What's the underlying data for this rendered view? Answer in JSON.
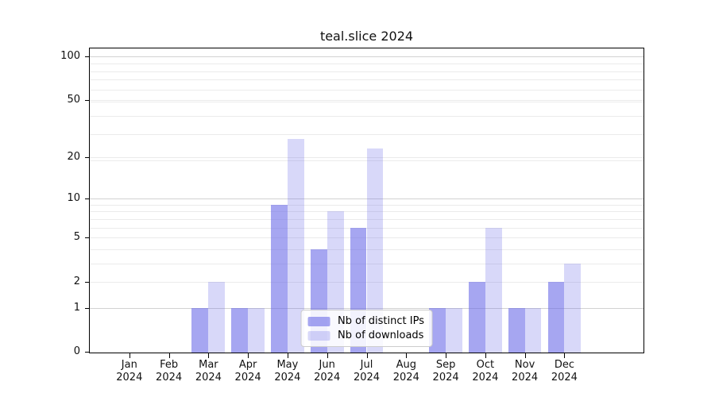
{
  "chart_data": {
    "type": "bar",
    "title": "teal.slice 2024",
    "categories": [
      "Jan",
      "Feb",
      "Mar",
      "Apr",
      "May",
      "Jun",
      "Jul",
      "Aug",
      "Sep",
      "Oct",
      "Nov",
      "Dec"
    ],
    "year_label": "2024",
    "series": [
      {
        "key": "distinct-ips",
        "name": "Nb of distinct IPs",
        "color": "rgba(101,101,231,0.58)",
        "values": [
          0,
          0,
          1,
          1,
          9,
          4,
          6,
          0,
          1,
          2,
          1,
          2
        ]
      },
      {
        "key": "downloads",
        "name": "Nb of downloads",
        "color": "rgba(101,101,231,0.25)",
        "values": [
          0,
          0,
          2,
          1,
          27,
          8,
          23,
          0,
          1,
          6,
          1,
          3
        ]
      }
    ],
    "yscale": "log10(value+1)",
    "ylim": [
      0,
      113
    ],
    "xlim_units": [
      -1,
      12
    ],
    "y_ticks": [
      0,
      1,
      2,
      5,
      10,
      20,
      50,
      100
    ],
    "gridlines_major": [
      1,
      10,
      100
    ],
    "gridlines_minor": [
      2,
      3,
      4,
      5,
      6,
      7,
      8,
      9,
      19,
      20,
      29,
      39,
      49,
      50,
      59,
      69,
      79,
      89
    ],
    "grid": true,
    "legend_position": "lower center"
  },
  "colors": {
    "spine": "#000000",
    "grid_major": "#d2d2d2",
    "grid_minor": "#ebebeb",
    "bar_base": "#6565e7"
  }
}
